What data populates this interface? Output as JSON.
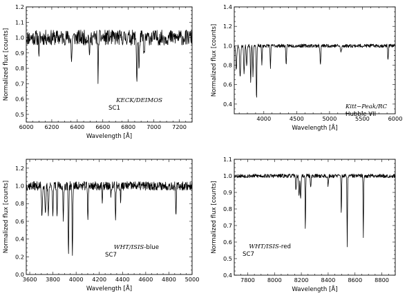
{
  "figure": {
    "line_color": "#000000",
    "background": "#ffffff"
  },
  "chart_data": [
    {
      "type": "line",
      "ann_instrument": "KECK/DEIMOS",
      "ann_object": "SC1",
      "xlabel": "Wavelength [Å]",
      "ylabel": "Normalized flux [counts]",
      "xlim": [
        6000,
        7300
      ],
      "ylim": [
        0.45,
        1.2
      ],
      "xticks": [
        "6000",
        "6200",
        "6400",
        "6600",
        "6800",
        "7000",
        "7200"
      ],
      "yticks": [
        "0.5",
        "0.6",
        "0.7",
        "0.8",
        "0.9",
        "1.0",
        "1.1",
        "1.2"
      ],
      "spectrum": {
        "seed": 11,
        "samples": 520,
        "continuum": 1.0,
        "noise": 0.05,
        "features": [
          {
            "at": 6563,
            "depth": 0.35,
            "width": 2
          },
          {
            "at": 6867,
            "depth": 0.29,
            "width": 3
          },
          {
            "at": 6884,
            "depth": 0.22,
            "width": 3
          },
          {
            "at": 6925,
            "depth": 0.12,
            "width": 4
          },
          {
            "at": 6355,
            "depth": 0.17,
            "width": 3
          },
          {
            "at": 6497,
            "depth": 0.12,
            "width": 3
          },
          {
            "at": 6100,
            "depth": 0.1,
            "width": 3
          }
        ]
      }
    },
    {
      "type": "line",
      "ann_instrument": "Kitt−Peak/RC",
      "ann_object": "Hubble VII",
      "xlabel": "Wavelength [Å]",
      "ylabel": "Normalized flux [counts]",
      "xlim": [
        3550,
        6000
      ],
      "ylim": [
        0.3,
        1.4
      ],
      "xticks": [
        "4000",
        "4500",
        "5000",
        "5500",
        "6000"
      ],
      "yticks": [
        "0.4",
        "0.6",
        "0.8",
        "1.0",
        "1.2",
        "1.4"
      ],
      "spectrum": {
        "seed": 23,
        "samples": 560,
        "continuum": 1.0,
        "noise": 0.018,
        "features": [
          {
            "at": 3580,
            "depth": 0.25,
            "width": 8
          },
          {
            "at": 3640,
            "depth": 0.32,
            "width": 8
          },
          {
            "at": 3700,
            "depth": 0.28,
            "width": 7
          },
          {
            "at": 3740,
            "depth": 0.22,
            "width": 6
          },
          {
            "at": 3800,
            "depth": 0.38,
            "width": 5
          },
          {
            "at": 3835,
            "depth": 0.32,
            "width": 5
          },
          {
            "at": 3889,
            "depth": 0.57,
            "width": 5
          },
          {
            "at": 3970,
            "depth": 0.2,
            "width": 5
          },
          {
            "at": 4101,
            "depth": 0.22,
            "width": 5
          },
          {
            "at": 4340,
            "depth": 0.18,
            "width": 6
          },
          {
            "at": 4861,
            "depth": 0.2,
            "width": 6
          },
          {
            "at": 5175,
            "depth": 0.06,
            "width": 10
          },
          {
            "at": 5890,
            "depth": 0.15,
            "width": 5
          }
        ]
      }
    },
    {
      "type": "line",
      "ann_instrument": "WHT/ISIS",
      "ann_suffix": "-blue",
      "ann_object": "SC7",
      "xlabel": "Wavelength [Å]",
      "ylabel": "Normalized flux [counts]",
      "xlim": [
        3570,
        5000
      ],
      "ylim": [
        0.0,
        1.3
      ],
      "xticks": [
        "3600",
        "3800",
        "4000",
        "4200",
        "4400",
        "4600",
        "4800",
        "5000"
      ],
      "yticks": [
        "0.0",
        "0.2",
        "0.4",
        "0.6",
        "0.8",
        "1.0",
        "1.2"
      ],
      "spectrum": {
        "seed": 37,
        "samples": 600,
        "continuum": 1.0,
        "noise": 0.05,
        "features": [
          {
            "at": 3705,
            "depth": 0.32,
            "width": 4
          },
          {
            "at": 3735,
            "depth": 0.35,
            "width": 4
          },
          {
            "at": 3760,
            "depth": 0.3,
            "width": 4
          },
          {
            "at": 3800,
            "depth": 0.35,
            "width": 3
          },
          {
            "at": 3835,
            "depth": 0.38,
            "width": 3
          },
          {
            "at": 3889,
            "depth": 0.4,
            "width": 3
          },
          {
            "at": 3934,
            "depth": 0.78,
            "width": 3
          },
          {
            "at": 3968,
            "depth": 0.8,
            "width": 3
          },
          {
            "at": 4101,
            "depth": 0.38,
            "width": 3
          },
          {
            "at": 4226,
            "depth": 0.2,
            "width": 3
          },
          {
            "at": 4340,
            "depth": 0.35,
            "width": 3
          },
          {
            "at": 4383,
            "depth": 0.15,
            "width": 3
          },
          {
            "at": 4861,
            "depth": 0.38,
            "width": 3
          },
          {
            "at": 4300,
            "depth": 0.15,
            "width": 3
          }
        ]
      }
    },
    {
      "type": "line",
      "ann_instrument": "WHT/ISIS",
      "ann_suffix": "-red",
      "ann_object": "SC7",
      "xlabel": "Wavelength [Å]",
      "ylabel": "Normalized flux [counts]",
      "xlim": [
        7700,
        8900
      ],
      "ylim": [
        0.4,
        1.1
      ],
      "xticks": [
        "7800",
        "8000",
        "8200",
        "8400",
        "8600",
        "8800"
      ],
      "yticks": [
        "0.4",
        "0.5",
        "0.6",
        "0.7",
        "0.8",
        "0.9",
        "1.0",
        "1.1"
      ],
      "spectrum": {
        "seed": 53,
        "samples": 560,
        "continuum": 1.0,
        "noise": 0.012,
        "features": [
          {
            "at": 8183,
            "depth": 0.12,
            "width": 3
          },
          {
            "at": 8195,
            "depth": 0.14,
            "width": 3
          },
          {
            "at": 8230,
            "depth": 0.33,
            "width": 2
          },
          {
            "at": 8160,
            "depth": 0.08,
            "width": 3
          },
          {
            "at": 8498,
            "depth": 0.23,
            "width": 2
          },
          {
            "at": 8542,
            "depth": 0.43,
            "width": 2
          },
          {
            "at": 8662,
            "depth": 0.38,
            "width": 2
          },
          {
            "at": 8400,
            "depth": 0.06,
            "width": 3
          },
          {
            "at": 8270,
            "depth": 0.06,
            "width": 3
          }
        ]
      }
    }
  ]
}
